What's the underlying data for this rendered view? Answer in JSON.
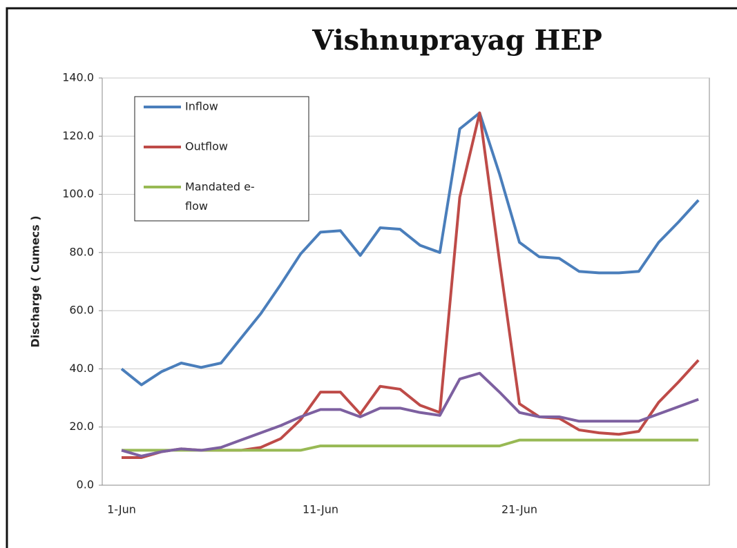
{
  "chart_data": {
    "type": "line",
    "title": "Vishnuprayag HEP",
    "y_label": "Discharge ( Cumecs )",
    "categories": [
      "1-Jun",
      null,
      null,
      null,
      null,
      null,
      null,
      null,
      null,
      null,
      "11-Jun",
      null,
      null,
      null,
      null,
      null,
      null,
      null,
      null,
      null,
      "21-Jun",
      null,
      null,
      null,
      null,
      null,
      null,
      null,
      null,
      null
    ],
    "series": [
      {
        "name": "Inflow",
        "color": "#4a7ebb",
        "values": [
          40,
          34.5,
          39,
          42,
          40.5,
          42,
          50.5,
          59,
          69,
          79.5,
          87,
          87.5,
          79,
          88.5,
          88,
          82.5,
          80,
          122.5,
          128,
          107,
          83.5,
          78.5,
          78,
          73.5,
          73,
          73,
          73.5,
          83.5,
          90.5,
          98
        ]
      },
      {
        "name": "Outflow",
        "color": "#be4b48",
        "values": [
          9.5,
          9.5,
          11.5,
          12.5,
          12,
          12,
          12,
          13,
          16,
          22.5,
          32,
          32,
          24.5,
          34,
          33,
          27.5,
          25,
          99,
          128,
          77,
          28,
          23.5,
          23,
          19,
          18,
          17.5,
          18.5,
          28.5,
          35.5,
          43
        ]
      },
      {
        "name": "Mandated e-flow",
        "color": "#98b954",
        "values": [
          12,
          12,
          12,
          12,
          12,
          12,
          12,
          12,
          12,
          12,
          13.5,
          13.5,
          13.5,
          13.5,
          13.5,
          13.5,
          13.5,
          13.5,
          13.5,
          13.5,
          15.5,
          15.5,
          15.5,
          15.5,
          15.5,
          15.5,
          15.5,
          15.5,
          15.5,
          15.5
        ]
      },
      {
        "color": "#7d60a0",
        "values": [
          12,
          10,
          11.5,
          12.5,
          12,
          13,
          15.5,
          18,
          20.5,
          23.5,
          26,
          26,
          23.5,
          26.5,
          26.5,
          25,
          24,
          36.5,
          38.5,
          32,
          25,
          23.5,
          23.5,
          22,
          22,
          22,
          22,
          24.5,
          27,
          29.5
        ]
      }
    ],
    "ylim": [
      0,
      140
    ],
    "yticks": [
      {
        "value": 0,
        "label": "0.0"
      },
      {
        "value": 20,
        "label": "20.0"
      },
      {
        "value": 40,
        "label": "40.0"
      },
      {
        "value": 60,
        "label": "60.0"
      },
      {
        "value": 80,
        "label": "80.0"
      },
      {
        "value": 100,
        "label": "100.0"
      },
      {
        "value": 120,
        "label": "120.0"
      },
      {
        "value": 140,
        "label": "140.0"
      }
    ],
    "grid": true
  }
}
